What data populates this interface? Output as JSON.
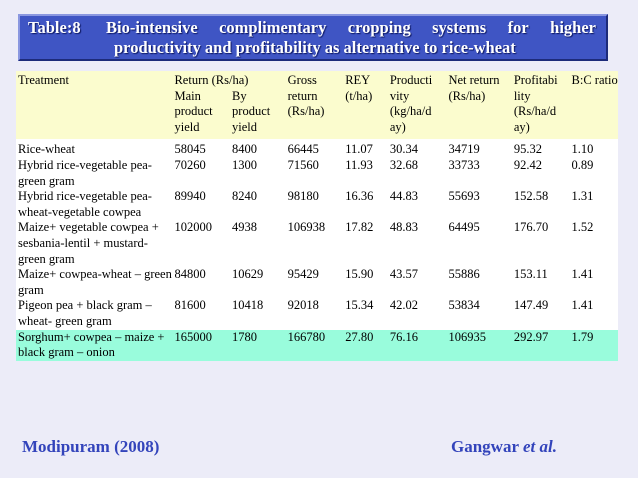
{
  "title": {
    "number": "Table:8",
    "line1_words": [
      "Bio-intensive",
      "complimentary",
      "cropping",
      "systems",
      "for",
      "higher"
    ],
    "line2": "productivity and profitability as alternative to rice-wheat"
  },
  "table": {
    "headers": {
      "treatment": "Treatment",
      "return": "Return (Rs/ha)",
      "main": "Main product yield",
      "by": "By product yield",
      "gross": "Gross return (Rs/ha)",
      "rey": "REY (t/ha)",
      "productivity": "Producti vity (kg/ha/d ay)",
      "net": "Net return (Rs/ha)",
      "profitability": "Profitabi lity (Rs/ha/d ay)",
      "bc": "B:C ratio"
    },
    "rows": [
      {
        "treatment": "Rice-wheat",
        "main": "58045",
        "by": "8400",
        "gross": "66445",
        "rey": "11.07",
        "prod": "30.34",
        "net": "34719",
        "profit": "95.32",
        "bc": "1.10"
      },
      {
        "treatment": "Hybrid rice-vegetable pea-green gram",
        "main": "70260",
        "by": "1300",
        "gross": "71560",
        "rey": "11.93",
        "prod": "32.68",
        "net": "33733",
        "profit": "92.42",
        "bc": "0.89"
      },
      {
        "treatment": "Hybrid rice-vegetable pea-wheat-vegetable cowpea",
        "main": "89940",
        "by": "8240",
        "gross": "98180",
        "rey": "16.36",
        "prod": "44.83",
        "net": "55693",
        "profit": "152.58",
        "bc": "1.31"
      },
      {
        "treatment": "Maize+ vegetable cowpea + sesbania-lentil + mustard-green gram",
        "main": "102000",
        "by": "4938",
        "gross": "106938",
        "rey": "17.82",
        "prod": "48.83",
        "net": "64495",
        "profit": "176.70",
        "bc": "1.52"
      },
      {
        "treatment": "Maize+ cowpea-wheat – green gram",
        "main": "84800",
        "by": "10629",
        "gross": "95429",
        "rey": "15.90",
        "prod": "43.57",
        "net": "55886",
        "profit": "153.11",
        "bc": "1.41"
      },
      {
        "treatment": "Pigeon pea + black gram – wheat- green gram",
        "main": "81600",
        "by": "10418",
        "gross": "92018",
        "rey": "15.34",
        "prod": "42.02",
        "net": "53834",
        "profit": "147.49",
        "bc": "1.41"
      },
      {
        "treatment": "Sorghum+ cowpea – maize + black gram – onion",
        "main": "165000",
        "by": "1780",
        "gross": "166780",
        "rey": "27.80",
        "prod": "76.16",
        "net": "106935",
        "profit": "292.97",
        "bc": "1.79"
      }
    ]
  },
  "footer": {
    "source": "Modipuram  (2008)",
    "author_name": "Gangwar",
    "author_suffix": "et al."
  },
  "colors": {
    "title_bg": "#3f55c4",
    "header_bg": "#fbfcce",
    "highlight_bg": "#99fcdc",
    "footer_text": "#3344bb"
  }
}
